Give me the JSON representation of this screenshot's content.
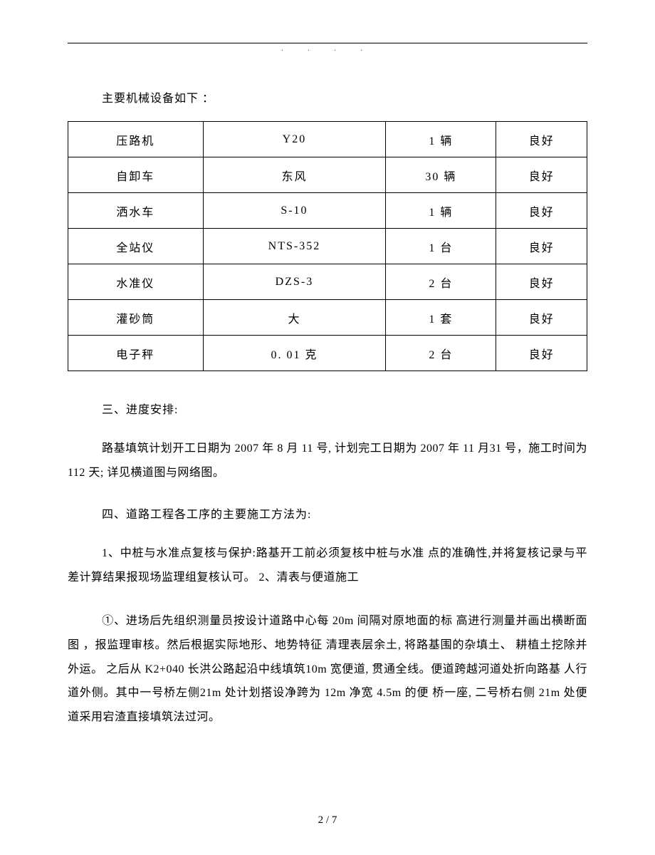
{
  "dots_text": ". . . .",
  "intro_text": "主要机械设备如下 ：",
  "equipment_table": {
    "rows": [
      [
        "压路机",
        "Y20",
        "1 辆",
        "良好"
      ],
      [
        "自卸车",
        "东风",
        "30 辆",
        "良好"
      ],
      [
        "洒水车",
        "S-10",
        "1 辆",
        "良好"
      ],
      [
        "全站仪",
        "NTS-352",
        "1 台",
        "良好"
      ],
      [
        "水准仪",
        "DZS-3",
        "2 台",
        "良好"
      ],
      [
        "灌砂筒",
        "大",
        "1 套",
        "良好"
      ],
      [
        "电子秤",
        "0. 01 克",
        "2 台",
        "良好"
      ]
    ]
  },
  "section3_heading": "三、进度安排:",
  "section3_para": "路基填筑计划开工日期为 2007 年 8 月 11 号, 计划完工日期为 2007 年 11 月31 号，施工时间为 112 天; 详见横道图与网络图。",
  "section4_heading": "四、道路工程各工序的主要施工方法为:",
  "section4_para1": "1、中桩与水准点复核与保护:路基开工前必须复核中桩与水准 点的准确性,并将复核记录与平差计算结果报现场监理组复核认可。 2、清表与便道施工",
  "section4_para2": "①、进场后先组织测量员按设计道路中心每 20m 间隔对原地面的标 高进行测量并画出横断面图 ，报监理审核。然后根据实际地形、地势特征 清理表层余土, 将路基围的杂填土、 耕植土挖除并外运。 之后从 K2+040 长洪公路起沿中线填筑10m 宽便道, 贯通全线。便道跨越河道处折向路基 人行道外侧。其中一号桥左侧21m 处计划搭设净跨为 12m 净宽 4.5m 的便 桥一座, 二号桥右侧 21m 处便道采用宕渣直接填筑法过河。",
  "page_number": "2 / 7"
}
